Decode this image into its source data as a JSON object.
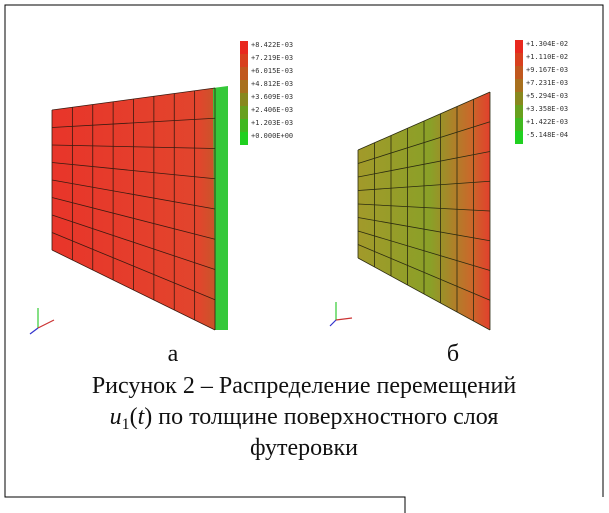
{
  "figure": {
    "panels": [
      {
        "label": "а",
        "legend": [
          "+8.422E-03",
          "+7.219E-03",
          "+6.015E-03",
          "+4.812E-03",
          "+3.609E-03",
          "+2.406E-03",
          "+1.203E-03",
          "+0.000E+00"
        ]
      },
      {
        "label": "б",
        "legend": [
          "+1.304E-02",
          "+1.110E-02",
          "+9.167E-03",
          "+7.231E-03",
          "+5.294E-03",
          "+3.358E-03",
          "+1.422E-03",
          "-5.148E-04"
        ]
      }
    ],
    "caption": {
      "line1": "Рисунок 2 – Распределение перемещений",
      "symbol": "u",
      "subscript": "1",
      "open": "(",
      "argument": "t",
      "rest": ") по толщине поверхностного слоя",
      "line3": "футеровки"
    }
  }
}
